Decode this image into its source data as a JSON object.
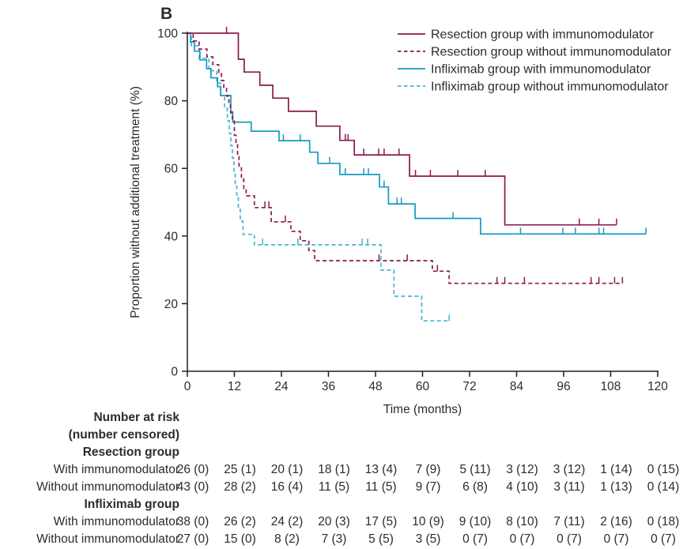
{
  "panel_label": "B",
  "colors": {
    "resection": "#8a1a4f",
    "infliximab_solid": "#149cc0",
    "infliximab_dashed": "#46b4d6",
    "text": "#2e2b28",
    "axis": "#231f20"
  },
  "chart_data": {
    "type": "line",
    "subtype": "kaplan-meier-step",
    "title": "",
    "xlabel": "Time (months)",
    "ylabel": "Proportion without additional treatment (%)",
    "xlim": [
      0,
      120
    ],
    "ylim": [
      0,
      100
    ],
    "xticks": [
      0,
      12,
      24,
      36,
      48,
      60,
      72,
      84,
      96,
      108,
      120
    ],
    "yticks": [
      0,
      20,
      40,
      60,
      80,
      100
    ],
    "grid": false,
    "legend_position": "top-right",
    "series": [
      {
        "key": "resection-with-immunomodulator",
        "name": "Resection group with immunomodulator",
        "color": "#8a1a4f",
        "dashed": false,
        "steps": [
          [
            0,
            100
          ],
          [
            13,
            92.3
          ],
          [
            14.5,
            88.5
          ],
          [
            18.5,
            84.6
          ],
          [
            21.8,
            80.8
          ],
          [
            25.8,
            76.9
          ],
          [
            32.9,
            72.5
          ],
          [
            38.9,
            68.3
          ],
          [
            42.6,
            64
          ],
          [
            56.7,
            57.7
          ],
          [
            81,
            43.3
          ]
        ],
        "end_time": 109.5,
        "censors": [
          [
            10,
            100
          ],
          [
            40.3,
            68.3
          ],
          [
            41,
            68.3
          ],
          [
            45,
            64
          ],
          [
            48.8,
            64
          ],
          [
            50.2,
            64
          ],
          [
            54,
            64
          ],
          [
            58.2,
            57.7
          ],
          [
            62,
            57.7
          ],
          [
            69,
            57.7
          ],
          [
            76,
            57.7
          ],
          [
            100,
            43.3
          ],
          [
            105,
            43.3
          ],
          [
            109.5,
            43.3
          ]
        ]
      },
      {
        "key": "resection-without-immunomodulator",
        "name": "Resection group without immunomodulator",
        "color": "#8a1a4f",
        "dashed": true,
        "steps": [
          [
            0,
            100
          ],
          [
            1.5,
            97.7
          ],
          [
            3,
            95.3
          ],
          [
            5,
            93
          ],
          [
            6.5,
            90.7
          ],
          [
            8,
            88.4
          ],
          [
            8.7,
            86
          ],
          [
            9.3,
            83.7
          ],
          [
            10,
            81.4
          ],
          [
            10.6,
            79.1
          ],
          [
            11,
            76.7
          ],
          [
            11.5,
            74.4
          ],
          [
            12,
            69.8
          ],
          [
            12.4,
            67.2
          ],
          [
            12.8,
            64
          ],
          [
            13.2,
            60.7
          ],
          [
            13.8,
            56.8
          ],
          [
            14.4,
            54
          ],
          [
            15,
            51.9
          ],
          [
            17.1,
            48.4
          ],
          [
            21.4,
            44.2
          ],
          [
            26.4,
            41.4
          ],
          [
            28.8,
            38.6
          ],
          [
            31,
            35.7
          ],
          [
            32.5,
            32.7
          ],
          [
            62.5,
            29.6
          ],
          [
            66.8,
            26
          ]
        ],
        "end_time": 111,
        "censors": [
          [
            19.8,
            48.4
          ],
          [
            20.8,
            48.4
          ],
          [
            25,
            44.2
          ],
          [
            48.9,
            32.7
          ],
          [
            56.1,
            32.7
          ],
          [
            63.8,
            29.6
          ],
          [
            79,
            26
          ],
          [
            81,
            26
          ],
          [
            86,
            26
          ],
          [
            103,
            26
          ],
          [
            105,
            26
          ],
          [
            109,
            26
          ],
          [
            111,
            26
          ]
        ]
      },
      {
        "key": "infliximab-with-immunomodulator",
        "name": "Infliximab group with immunomodulator",
        "color": "#149cc0",
        "dashed": false,
        "steps": [
          [
            0,
            100
          ],
          [
            0.8,
            97.4
          ],
          [
            1.8,
            94.7
          ],
          [
            3.2,
            92.1
          ],
          [
            4.9,
            89.5
          ],
          [
            6,
            86.8
          ],
          [
            7.7,
            84.2
          ],
          [
            8.5,
            81.6
          ],
          [
            11.1,
            76.3
          ],
          [
            11.6,
            73.7
          ],
          [
            16.3,
            71
          ],
          [
            23.4,
            68.2
          ],
          [
            31.2,
            64.8
          ],
          [
            33.3,
            61.5
          ],
          [
            38.9,
            58.2
          ],
          [
            49,
            54.5
          ],
          [
            51.3,
            49.5
          ],
          [
            58.1,
            45.2
          ],
          [
            74.8,
            40.6
          ]
        ],
        "end_time": 117,
        "censors": [
          [
            24.5,
            68.2
          ],
          [
            28.8,
            68.2
          ],
          [
            36.3,
            61.5
          ],
          [
            40.3,
            58.2
          ],
          [
            45,
            58.2
          ],
          [
            46.2,
            58.2
          ],
          [
            50.2,
            54.5
          ],
          [
            53.5,
            49.5
          ],
          [
            54.6,
            49.5
          ],
          [
            67.8,
            45.2
          ],
          [
            85,
            40.6
          ],
          [
            95.8,
            40.6
          ],
          [
            99,
            40.6
          ],
          [
            105,
            40.6
          ],
          [
            106.2,
            40.6
          ],
          [
            117,
            40.6
          ]
        ]
      },
      {
        "key": "infliximab-without-immunomodulator",
        "name": "Infliximab group without immunomodulator",
        "color": "#46b4d6",
        "dashed": true,
        "steps": [
          [
            0,
            100
          ],
          [
            1,
            96.3
          ],
          [
            3,
            92.6
          ],
          [
            5.5,
            88.9
          ],
          [
            7.5,
            85.2
          ],
          [
            8.5,
            81.5
          ],
          [
            9.5,
            77.8
          ],
          [
            10.2,
            74.1
          ],
          [
            10.7,
            70.4
          ],
          [
            11.1,
            66.7
          ],
          [
            11.5,
            63
          ],
          [
            11.9,
            59.2
          ],
          [
            12.2,
            55.5
          ],
          [
            12.6,
            51.8
          ],
          [
            13,
            48.1
          ],
          [
            13.5,
            44.4
          ],
          [
            14.2,
            40.5
          ],
          [
            17.1,
            37.4
          ],
          [
            49.4,
            29.9
          ],
          [
            52.7,
            22.2
          ],
          [
            59.8,
            14.9
          ]
        ],
        "end_time": 66.8,
        "censors": [
          [
            19.2,
            37.4
          ],
          [
            28.2,
            37.4
          ],
          [
            44.6,
            37.4
          ],
          [
            46,
            37.4
          ],
          [
            66.8,
            14.9
          ]
        ]
      }
    ]
  },
  "risk_table": {
    "header_line1": "Number at risk",
    "header_line2": "(number censored)",
    "time_points": [
      0,
      12,
      24,
      36,
      48,
      60,
      72,
      84,
      96,
      108,
      120
    ],
    "groups": [
      {
        "label": "Resection group",
        "rows": [
          {
            "label": "With immunomodulator",
            "values": [
              "26 (0)",
              "25 (1)",
              "20 (1)",
              "18 (1)",
              "13 (4)",
              "7 (9)",
              "5 (11)",
              "3 (12)",
              "3 (12)",
              "1 (14)",
              "0 (15)"
            ]
          },
          {
            "label": "Without immunomodulator",
            "values": [
              "43 (0)",
              "28 (2)",
              "16 (4)",
              "11 (5)",
              "11 (5)",
              "9 (7)",
              "6 (8)",
              "4 (10)",
              "3 (11)",
              "1 (13)",
              "0 (14)"
            ]
          }
        ]
      },
      {
        "label": "Infliximab group",
        "rows": [
          {
            "label": "With immunomodulator",
            "values": [
              "38 (0)",
              "26 (2)",
              "24 (2)",
              "20 (3)",
              "17 (5)",
              "10 (9)",
              "9 (10)",
              "8 (10)",
              "7 (11)",
              "2 (16)",
              "0 (18)"
            ]
          },
          {
            "label": "Without immunomodulator",
            "values": [
              "27 (0)",
              "15 (0)",
              "8 (2)",
              "7 (3)",
              "5 (5)",
              "3 (5)",
              "0 (7)",
              "0 (7)",
              "0 (7)",
              "0 (7)",
              "0 (7)"
            ]
          }
        ]
      }
    ]
  }
}
